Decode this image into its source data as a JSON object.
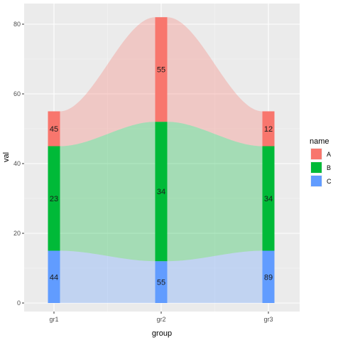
{
  "chart_data": {
    "type": "bar",
    "subtype": "stacked-bar-with-smoothed-area-ribbons",
    "categories": [
      "gr1",
      "gr2",
      "gr3"
    ],
    "series": [
      {
        "name": "A",
        "values": [
          45,
          55,
          12
        ],
        "bar_height": [
          10,
          30,
          10
        ],
        "color": "#F8766D"
      },
      {
        "name": "B",
        "values": [
          23,
          34,
          34
        ],
        "bar_height": [
          30,
          40,
          30
        ],
        "color": "#00BA38"
      },
      {
        "name": "C",
        "values": [
          44,
          55,
          89
        ],
        "bar_height": [
          15,
          12,
          15
        ],
        "color": "#619CFF"
      }
    ],
    "stack_order_bottom_to_top": [
      "C",
      "B",
      "A"
    ],
    "xlabel": "group",
    "ylabel": "val",
    "ylim": [
      0,
      82
    ],
    "yticks": [
      0,
      20,
      40,
      60,
      80
    ],
    "legend": {
      "title": "name",
      "entries": [
        "A",
        "B",
        "C"
      ],
      "placement": "right"
    },
    "grid": true,
    "colors": {
      "panel": "#EBEBEB",
      "grid": "#FFFFFF",
      "A": "#F8766D",
      "B": "#00BA38",
      "C": "#619CFF"
    }
  }
}
